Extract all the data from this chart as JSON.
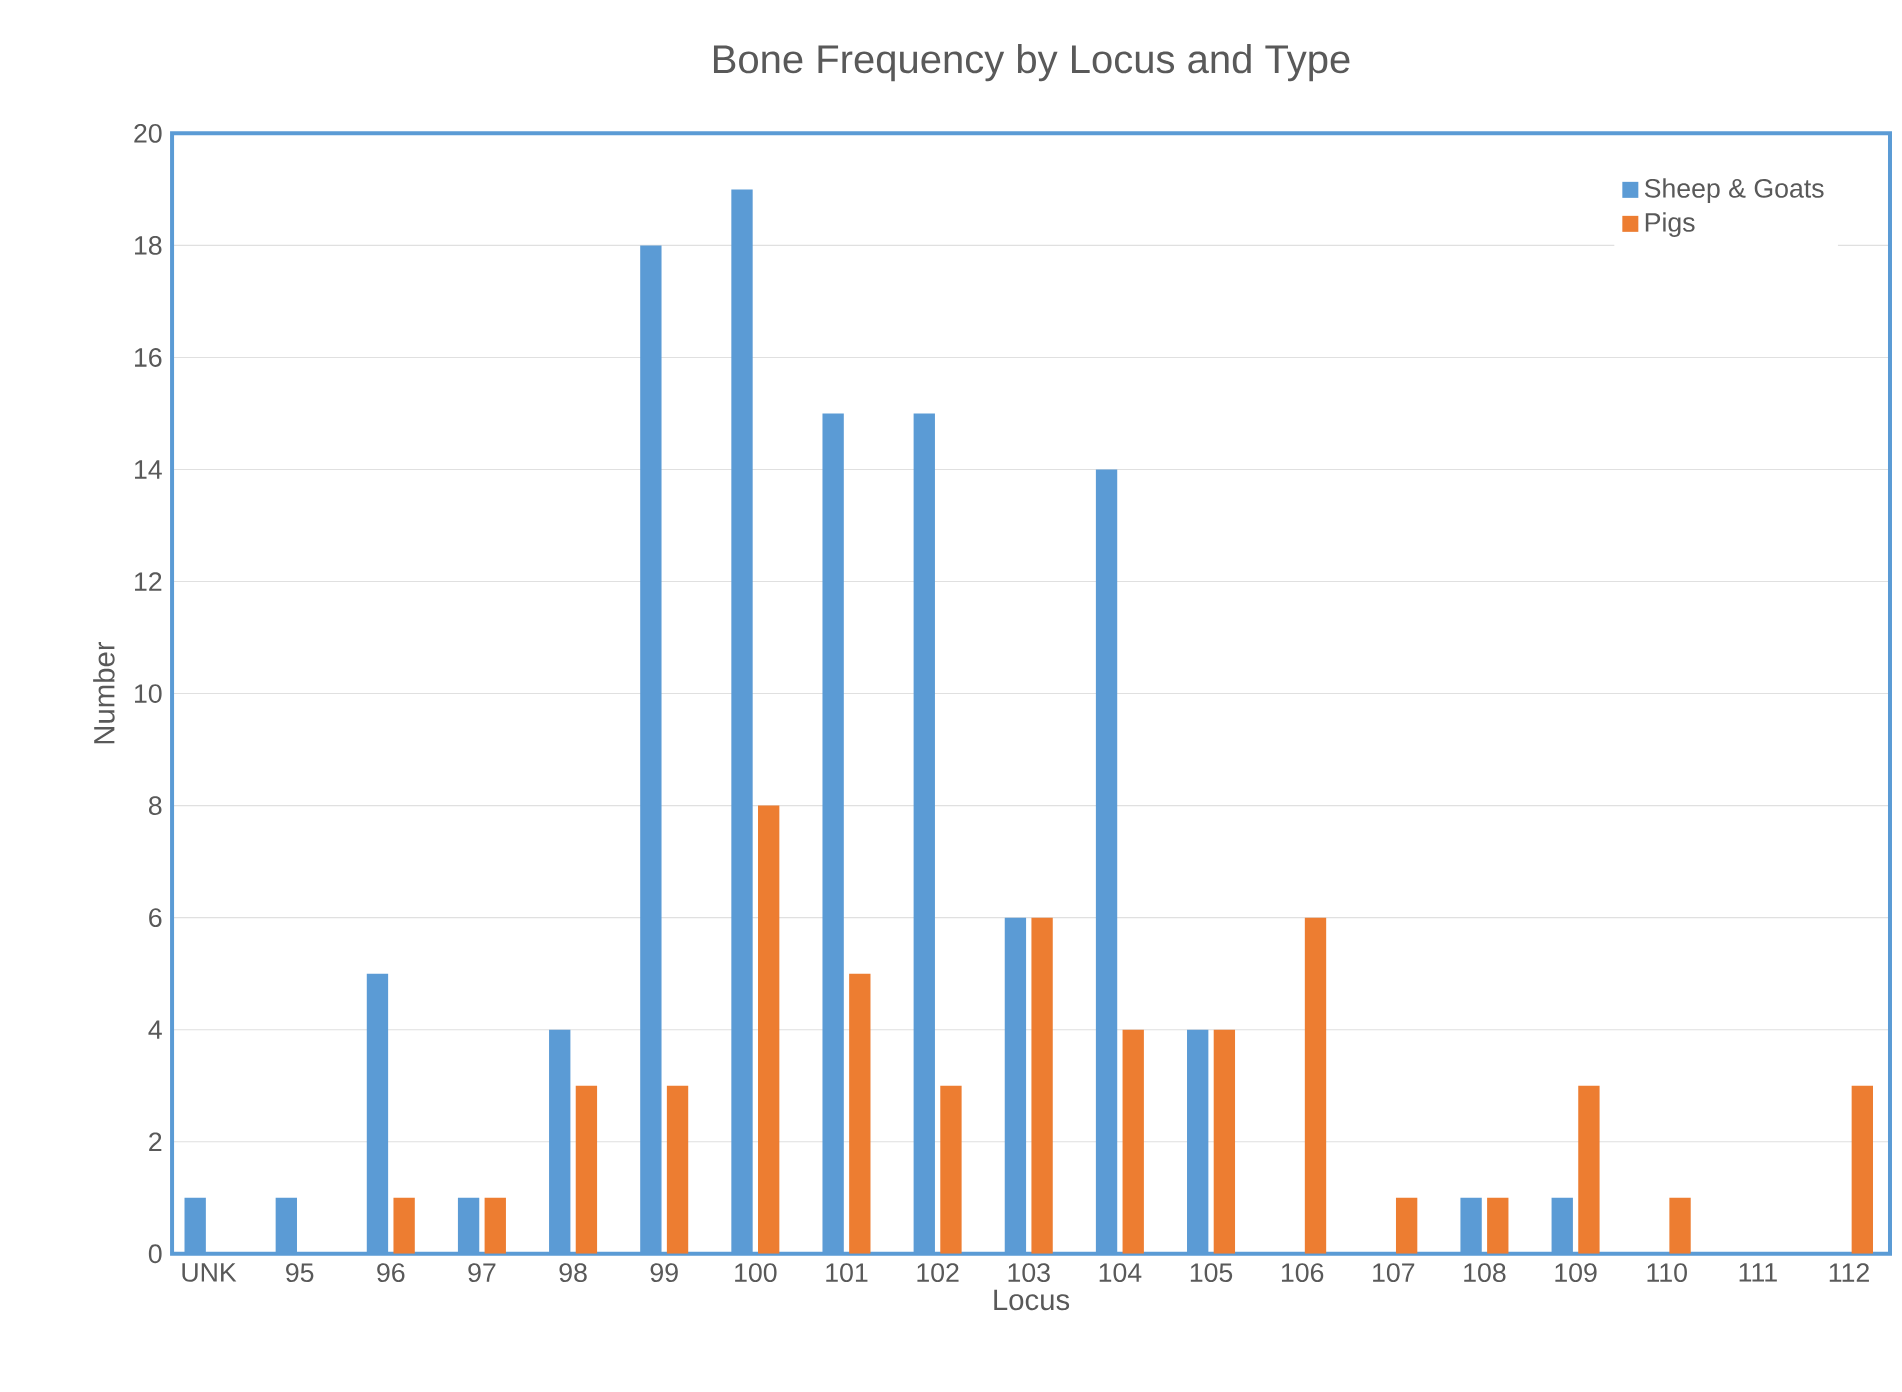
{
  "chart_data": {
    "type": "bar",
    "title": "Bone Frequency by Locus and Type",
    "xlabel": "Locus",
    "ylabel": "Number",
    "categories": [
      "UNK",
      "95",
      "96",
      "97",
      "98",
      "99",
      "100",
      "101",
      "102",
      "103",
      "104",
      "105",
      "106",
      "107",
      "108",
      "109",
      "110",
      "111",
      "112"
    ],
    "series": [
      {
        "name": "Sheep & Goats",
        "color": "#5b9bd5",
        "values": [
          1,
          1,
          5,
          1,
          4,
          18,
          19,
          15,
          15,
          6,
          14,
          4,
          0,
          0,
          1,
          1,
          0,
          0,
          0
        ]
      },
      {
        "name": "Pigs",
        "color": "#ed7d31",
        "values": [
          0,
          0,
          1,
          1,
          3,
          3,
          8,
          5,
          3,
          6,
          4,
          4,
          6,
          1,
          1,
          3,
          1,
          0,
          3
        ]
      }
    ],
    "ylim": [
      0,
      20
    ],
    "yticks": [
      0,
      2,
      4,
      6,
      8,
      10,
      12,
      14,
      16,
      18,
      20
    ],
    "grid": "y",
    "legend": "top right"
  }
}
